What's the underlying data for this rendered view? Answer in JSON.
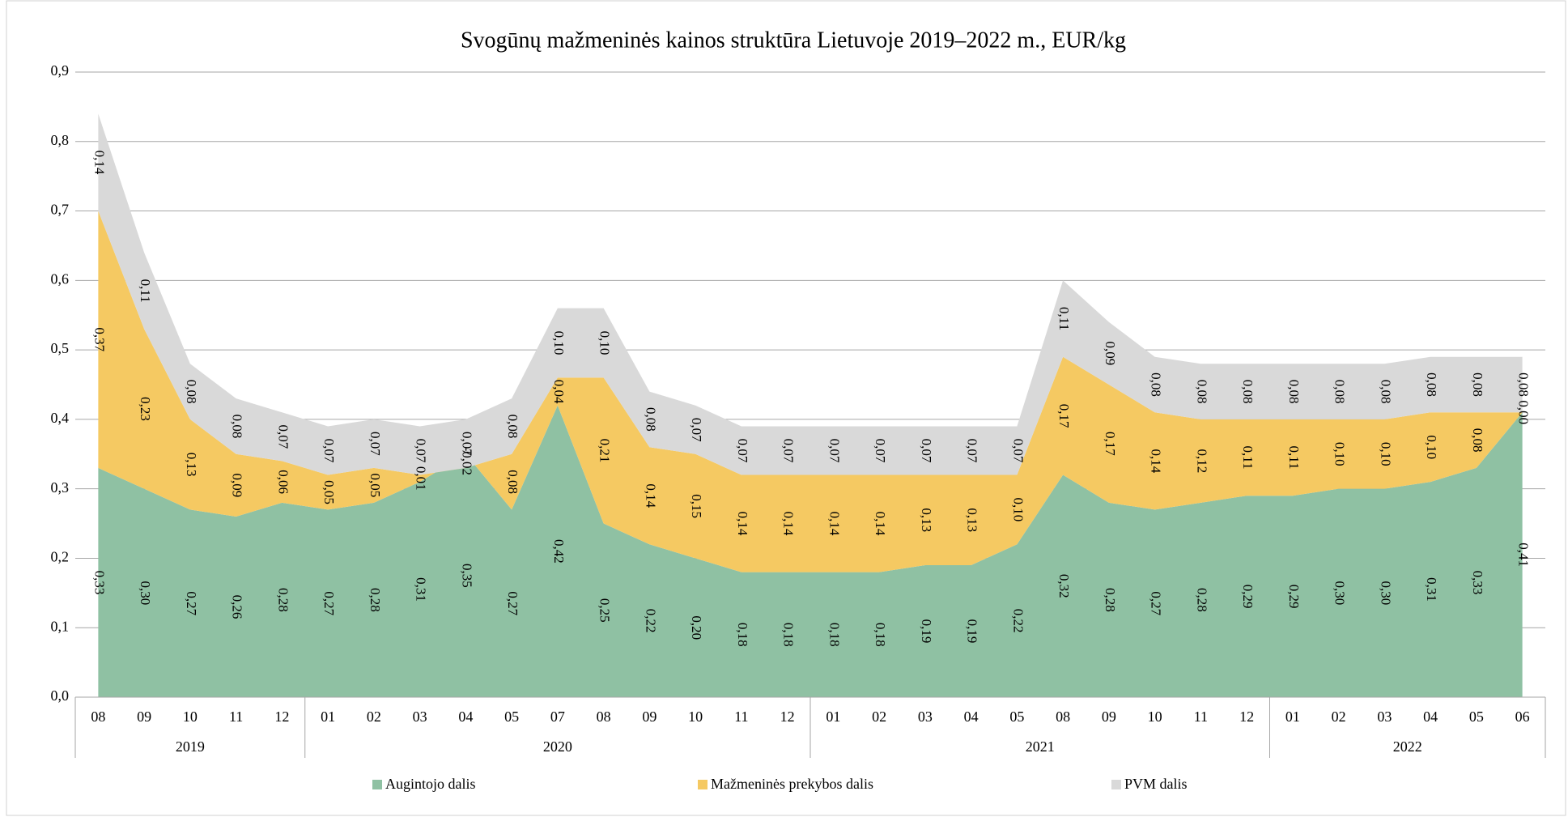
{
  "chart_data": {
    "type": "stacked_area",
    "title": "Svogūnų mažmeninės kainos struktūra Lietuvoje 2019–2022 m., EUR/kg",
    "categories": [
      "08",
      "09",
      "10",
      "11",
      "12",
      "01",
      "02",
      "03",
      "04",
      "05",
      "07",
      "08",
      "09",
      "10",
      "11",
      "12",
      "01",
      "02",
      "03",
      "04",
      "05",
      "08",
      "09",
      "10",
      "11",
      "12",
      "01",
      "02",
      "03",
      "04",
      "05",
      "06"
    ],
    "category_groups": [
      {
        "label": "2019",
        "span": 5
      },
      {
        "label": "2020",
        "span": 11
      },
      {
        "label": "2021",
        "span": 10
      },
      {
        "label": "2022",
        "span": 6
      }
    ],
    "series": [
      {
        "name": "Augintojo dalis",
        "color": "#8fc1a3",
        "values": [
          0.33,
          0.3,
          0.27,
          0.26,
          0.28,
          0.27,
          0.28,
          0.31,
          0.35,
          0.27,
          0.42,
          0.25,
          0.22,
          0.2,
          0.18,
          0.18,
          0.18,
          0.18,
          0.19,
          0.19,
          0.22,
          0.32,
          0.28,
          0.27,
          0.28,
          0.29,
          0.29,
          0.3,
          0.3,
          0.31,
          0.33,
          0.41
        ],
        "value_labels": [
          "0,33",
          "0,30",
          "0,27",
          "0,26",
          "0,28",
          "0,27",
          "0,28",
          "0,31",
          "0,35",
          "0,27",
          "0,42",
          "0,25",
          "0,22",
          "0,20",
          "0,18",
          "0,18",
          "0,18",
          "0,18",
          "0,19",
          "0,19",
          "0,22",
          "0,32",
          "0,28",
          "0,27",
          "0,28",
          "0,29",
          "0,29",
          "0,30",
          "0,30",
          "0,31",
          "0,33",
          "0,41"
        ]
      },
      {
        "name": "Mažmeninės prekybos dalis",
        "color": "#f5c962",
        "values": [
          0.37,
          0.23,
          0.13,
          0.09,
          0.06,
          0.05,
          0.05,
          0.01,
          -0.02,
          0.08,
          0.04,
          0.21,
          0.14,
          0.15,
          0.14,
          0.14,
          0.14,
          0.14,
          0.13,
          0.13,
          0.1,
          0.17,
          0.17,
          0.14,
          0.12,
          0.11,
          0.11,
          0.1,
          0.1,
          0.1,
          0.08,
          0.0
        ],
        "value_labels": [
          "0,37",
          "0,23",
          "0,13",
          "0,09",
          "0,06",
          "0,05",
          "0,05",
          "0,01",
          "-0,02",
          "0,08",
          "0,04",
          "0,21",
          "0,14",
          "0,15",
          "0,14",
          "0,14",
          "0,14",
          "0,14",
          "0,13",
          "0,13",
          "0,10",
          "0,17",
          "0,17",
          "0,14",
          "0,12",
          "0,11",
          "0,11",
          "0,10",
          "0,10",
          "0,10",
          "0,08",
          "0,00"
        ]
      },
      {
        "name": "PVM dalis",
        "color": "#d9d9d9",
        "values": [
          0.14,
          0.11,
          0.08,
          0.08,
          0.07,
          0.07,
          0.07,
          0.07,
          0.07,
          0.08,
          0.1,
          0.1,
          0.08,
          0.07,
          0.07,
          0.07,
          0.07,
          0.07,
          0.07,
          0.07,
          0.07,
          0.11,
          0.09,
          0.08,
          0.08,
          0.08,
          0.08,
          0.08,
          0.08,
          0.08,
          0.08,
          0.08
        ],
        "value_labels": [
          "0,14",
          "0,11",
          "0,08",
          "0,08",
          "0,07",
          "0,07",
          "0,07",
          "0,07",
          "0,07",
          "0,08",
          "0,10",
          "0,10",
          "0,08",
          "0,07",
          "0,07",
          "0,07",
          "0,07",
          "0,07",
          "0,07",
          "0,07",
          "0,07",
          "0,11",
          "0,09",
          "0,08",
          "0,08",
          "0,08",
          "0,08",
          "0,08",
          "0,08",
          "0,08",
          "0,08",
          "0,08"
        ]
      }
    ],
    "ylim": [
      0,
      0.9
    ],
    "yticks": [
      {
        "value": 0,
        "label": "0,0"
      },
      {
        "value": 0.1,
        "label": "0,1"
      },
      {
        "value": 0.2,
        "label": "0,2"
      },
      {
        "value": 0.3,
        "label": "0,3"
      },
      {
        "value": 0.4,
        "label": "0,4"
      },
      {
        "value": 0.5,
        "label": "0,5"
      },
      {
        "value": 0.6,
        "label": "0,6"
      },
      {
        "value": 0.7,
        "label": "0,7"
      },
      {
        "value": 0.8,
        "label": "0,8"
      },
      {
        "value": 0.9,
        "label": "0,9"
      }
    ],
    "grid": true,
    "legend": "bottom"
  }
}
